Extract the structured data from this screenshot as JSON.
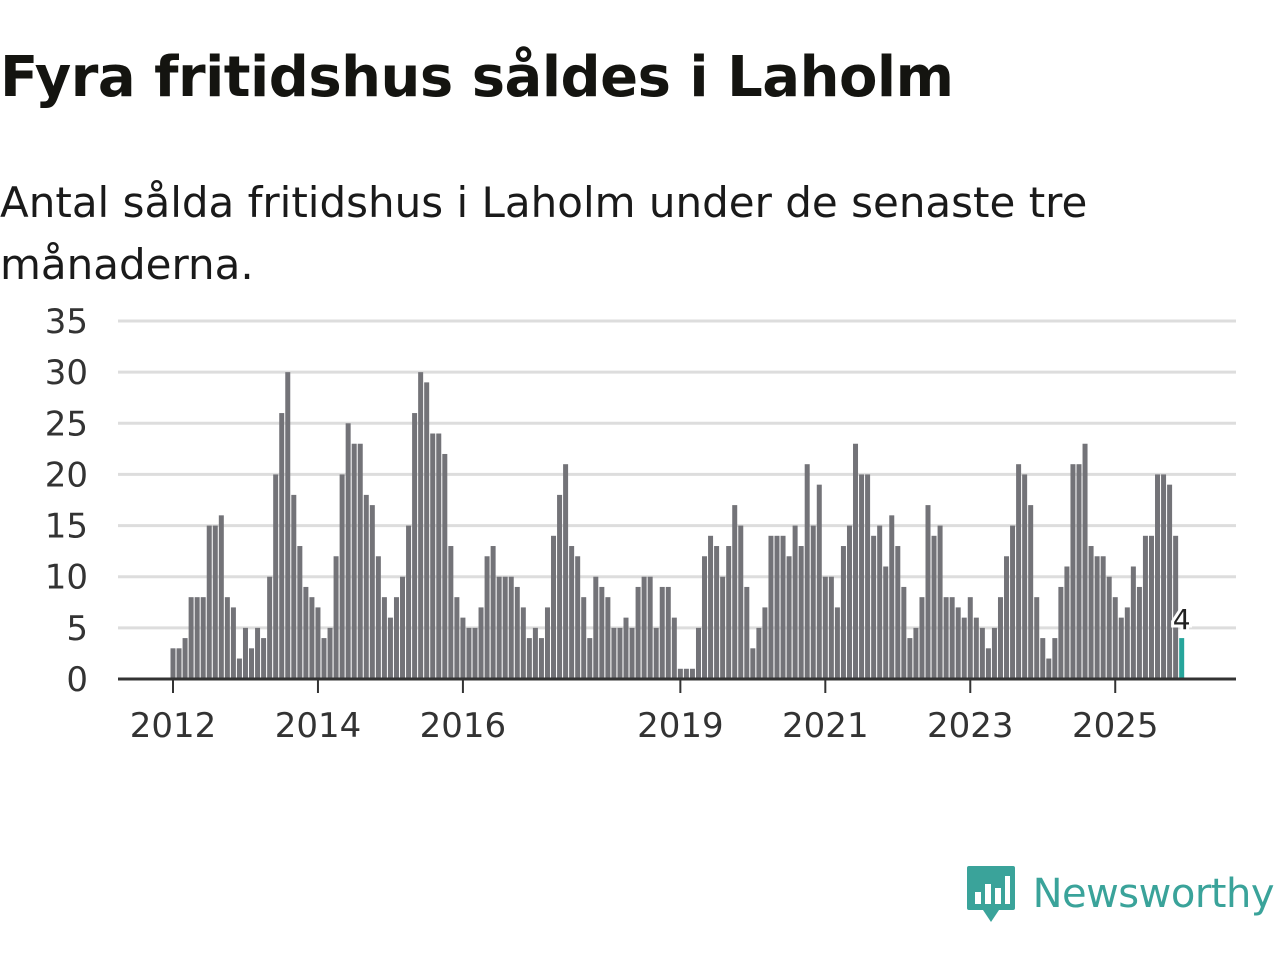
{
  "header": {
    "title": "Fyra fritidshus såldes i Laholm",
    "subtitle": "Antal sålda fritidshus i Laholm under de senaste tre månaderna."
  },
  "brand": {
    "name": "Newsworthy",
    "color": "#3aa39a"
  },
  "colors": {
    "bar": "#737378",
    "highlight": "#26a59b",
    "grid": "#dddddd",
    "axis": "#333333"
  },
  "chart_data": {
    "type": "bar",
    "title": "Fyra fritidshus såldes i Laholm",
    "xlabel": "",
    "ylabel": "",
    "ylim": [
      0,
      35
    ],
    "yticks": [
      "0",
      "5",
      "10",
      "15",
      "20",
      "25",
      "30",
      "35"
    ],
    "year_ticks": [
      {
        "label": "2012",
        "index": 0
      },
      {
        "label": "2014",
        "index": 24
      },
      {
        "label": "2016",
        "index": 48
      },
      {
        "label": "2019",
        "index": 84
      },
      {
        "label": "2021",
        "index": 108
      },
      {
        "label": "2023",
        "index": 132
      },
      {
        "label": "2025",
        "index": 156
      }
    ],
    "start": "2012-01",
    "frequency": "monthly",
    "values": [
      3,
      3,
      4,
      8,
      8,
      8,
      15,
      15,
      16,
      8,
      7,
      2,
      5,
      3,
      5,
      4,
      10,
      20,
      26,
      30,
      18,
      13,
      9,
      8,
      7,
      4,
      5,
      12,
      20,
      25,
      23,
      23,
      18,
      17,
      12,
      8,
      6,
      8,
      10,
      15,
      26,
      30,
      29,
      24,
      24,
      22,
      13,
      8,
      6,
      5,
      5,
      7,
      12,
      13,
      10,
      10,
      10,
      9,
      7,
      4,
      5,
      4,
      7,
      14,
      18,
      21,
      13,
      12,
      8,
      4,
      10,
      9,
      8,
      5,
      5,
      6,
      5,
      9,
      10,
      10,
      5,
      9,
      9,
      6,
      1,
      1,
      1,
      5,
      12,
      14,
      13,
      10,
      13,
      17,
      15,
      9,
      3,
      5,
      7,
      14,
      14,
      14,
      12,
      15,
      13,
      21,
      15,
      19,
      10,
      10,
      7,
      13,
      15,
      23,
      20,
      20,
      14,
      15,
      11,
      16,
      13,
      9,
      4,
      5,
      8,
      17,
      14,
      15,
      8,
      8,
      7,
      6,
      8,
      6,
      5,
      3,
      5,
      8,
      12,
      15,
      21,
      20,
      17,
      8,
      4,
      2,
      4,
      9,
      11,
      21,
      21,
      23,
      13,
      12,
      12,
      10,
      8,
      6,
      7,
      11,
      9,
      14,
      14,
      20,
      20,
      19,
      14,
      4
    ],
    "highlight_last": true,
    "last_value_label": "4"
  }
}
